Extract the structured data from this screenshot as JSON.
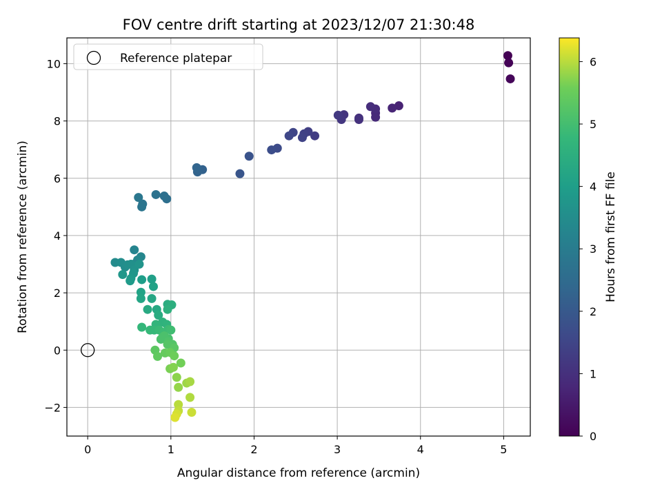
{
  "chart_data": {
    "type": "scatter",
    "title": "FOV centre drift starting at 2023/12/07 21:30:48",
    "xlabel": "Angular distance from reference (arcmin)",
    "ylabel": "Rotation from reference (arcmin)",
    "xlim": [
      -0.25,
      5.32
    ],
    "ylim": [
      -3.0,
      10.9
    ],
    "xticks": [
      0,
      1,
      2,
      3,
      4,
      5
    ],
    "yticks": [
      -2,
      0,
      2,
      4,
      6,
      8,
      10
    ],
    "xtick_labels": [
      "0",
      "1",
      "2",
      "3",
      "4",
      "5"
    ],
    "ytick_labels": [
      "−2",
      "0",
      "2",
      "4",
      "6",
      "8",
      "10"
    ],
    "grid": true,
    "legend": {
      "position": "top-left",
      "entries": [
        {
          "label": "Reference platepar",
          "marker": "open-circle"
        }
      ]
    },
    "reference_point": {
      "x": 0,
      "y": 0
    },
    "colorbar": {
      "label": "Hours from first FF file",
      "range": [
        0,
        6.38
      ],
      "ticks": [
        0,
        1,
        2,
        3,
        4,
        5,
        6
      ],
      "tick_labels": [
        "0",
        "1",
        "2",
        "3",
        "4",
        "5",
        "6"
      ],
      "colormap": "viridis"
    },
    "series": [
      {
        "points": [
          [
            5.05,
            10.28,
            0.0
          ],
          [
            5.06,
            10.03,
            0.05
          ],
          [
            5.08,
            9.47,
            0.1
          ],
          [
            3.74,
            8.53,
            0.7
          ],
          [
            3.66,
            8.45,
            0.75
          ],
          [
            3.46,
            8.28,
            0.8
          ],
          [
            3.46,
            8.13,
            0.85
          ],
          [
            3.46,
            8.42,
            0.9
          ],
          [
            3.4,
            8.5,
            0.95
          ],
          [
            3.26,
            8.1,
            1.0
          ],
          [
            3.26,
            8.05,
            1.05
          ],
          [
            3.08,
            8.22,
            1.1
          ],
          [
            3.05,
            8.05,
            1.15
          ],
          [
            3.01,
            8.2,
            1.2
          ],
          [
            2.73,
            7.48,
            1.3
          ],
          [
            2.65,
            7.63,
            1.35
          ],
          [
            2.6,
            7.55,
            1.4
          ],
          [
            2.58,
            7.42,
            1.45
          ],
          [
            2.47,
            7.6,
            1.5
          ],
          [
            2.42,
            7.48,
            1.55
          ],
          [
            2.28,
            7.05,
            1.65
          ],
          [
            2.21,
            6.99,
            1.7
          ],
          [
            1.94,
            6.77,
            1.85
          ],
          [
            1.83,
            6.16,
            1.9
          ],
          [
            1.38,
            6.3,
            2.25
          ],
          [
            1.32,
            6.22,
            2.3
          ],
          [
            1.31,
            6.37,
            2.35
          ],
          [
            0.95,
            5.28,
            2.6
          ],
          [
            0.92,
            5.38,
            2.65
          ],
          [
            0.82,
            5.43,
            2.7
          ],
          [
            0.66,
            5.1,
            2.75
          ],
          [
            0.65,
            5.0,
            2.8
          ],
          [
            0.61,
            5.33,
            2.85
          ],
          [
            0.56,
            3.5,
            3.25
          ],
          [
            0.64,
            3.26,
            3.3
          ],
          [
            0.6,
            3.15,
            3.35
          ],
          [
            0.57,
            3.02,
            3.4
          ],
          [
            0.33,
            3.06,
            3.45
          ],
          [
            0.4,
            3.06,
            3.5
          ],
          [
            0.45,
            2.9,
            3.5
          ],
          [
            0.48,
            2.98,
            3.55
          ],
          [
            0.52,
            3.0,
            3.6
          ],
          [
            0.56,
            2.8,
            3.65
          ],
          [
            0.62,
            3.0,
            3.7
          ],
          [
            0.55,
            2.68,
            3.75
          ],
          [
            0.42,
            2.64,
            3.8
          ],
          [
            0.52,
            2.5,
            3.85
          ],
          [
            0.51,
            2.42,
            3.9
          ],
          [
            0.65,
            2.46,
            4.0
          ],
          [
            0.77,
            2.48,
            4.05
          ],
          [
            0.79,
            2.22,
            4.1
          ],
          [
            0.64,
            2.02,
            4.15
          ],
          [
            0.64,
            1.8,
            4.2
          ],
          [
            0.77,
            1.8,
            4.25
          ],
          [
            0.83,
            1.42,
            4.3
          ],
          [
            0.72,
            1.42,
            4.35
          ],
          [
            0.85,
            1.22,
            4.4
          ],
          [
            0.96,
            1.6,
            4.45
          ],
          [
            1.01,
            1.58,
            4.5
          ],
          [
            0.96,
            1.42,
            4.55
          ],
          [
            0.9,
            0.98,
            4.6
          ],
          [
            0.95,
            0.9,
            4.65
          ],
          [
            0.82,
            0.9,
            4.7
          ],
          [
            0.65,
            0.8,
            4.75
          ],
          [
            0.75,
            0.7,
            4.8
          ],
          [
            0.8,
            0.7,
            4.8
          ],
          [
            0.86,
            0.7,
            4.85
          ],
          [
            0.91,
            0.62,
            4.9
          ],
          [
            0.97,
            0.72,
            4.9
          ],
          [
            1.0,
            0.7,
            4.95
          ],
          [
            0.9,
            0.45,
            5.0
          ],
          [
            0.97,
            0.4,
            5.05
          ],
          [
            0.88,
            0.38,
            5.1
          ],
          [
            0.92,
            0.5,
            5.1
          ],
          [
            0.97,
            0.3,
            5.15
          ],
          [
            1.02,
            0.2,
            5.2
          ],
          [
            0.96,
            0.2,
            5.25
          ],
          [
            1.04,
            0.08,
            5.3
          ],
          [
            0.81,
            0.0,
            5.35
          ],
          [
            0.84,
            -0.22,
            5.4
          ],
          [
            0.93,
            -0.1,
            5.45
          ],
          [
            0.99,
            -0.08,
            5.5
          ],
          [
            1.04,
            -0.2,
            5.55
          ],
          [
            1.12,
            -0.45,
            5.6
          ],
          [
            0.99,
            -0.65,
            5.65
          ],
          [
            1.03,
            -0.6,
            5.7
          ],
          [
            1.07,
            -0.95,
            5.75
          ],
          [
            1.09,
            -1.3,
            5.8
          ],
          [
            1.19,
            -1.15,
            5.85
          ],
          [
            1.23,
            -1.1,
            5.9
          ],
          [
            1.23,
            -1.65,
            5.95
          ],
          [
            1.09,
            -1.9,
            6.0
          ],
          [
            1.09,
            -2.12,
            6.05
          ],
          [
            1.25,
            -2.17,
            6.1
          ],
          [
            1.07,
            -2.23,
            6.15
          ],
          [
            1.05,
            -2.35,
            6.2
          ]
        ]
      }
    ]
  }
}
